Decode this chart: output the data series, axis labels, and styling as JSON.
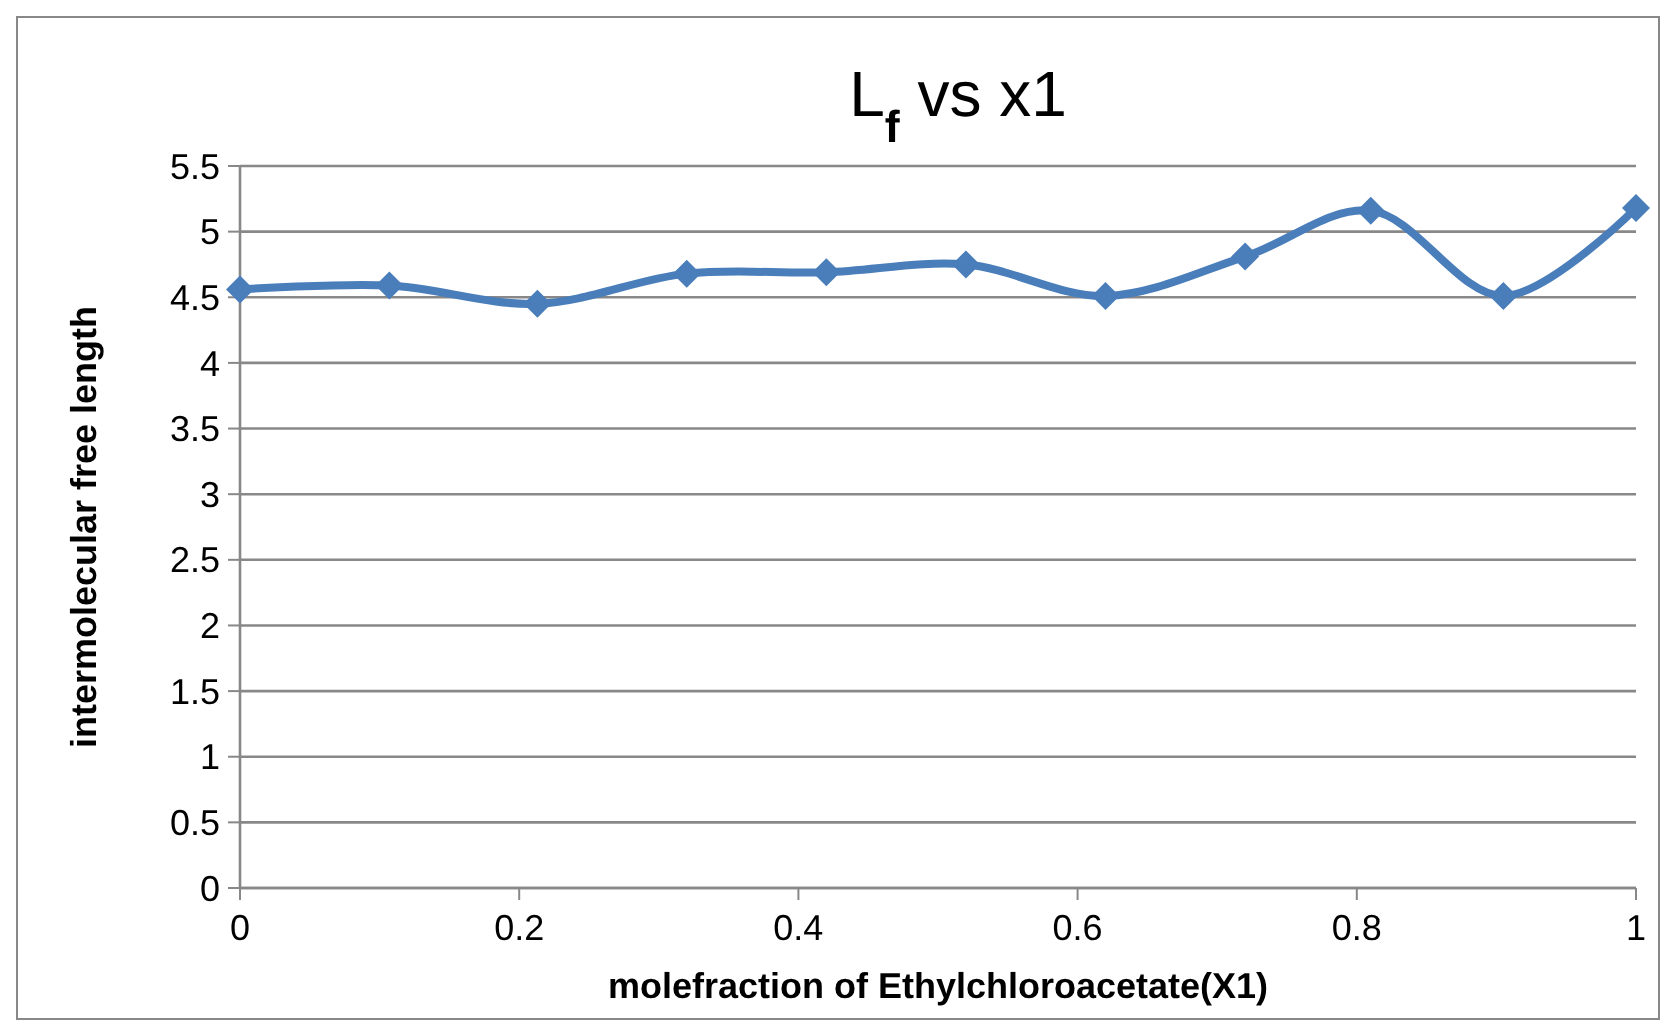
{
  "chart_data": {
    "type": "line",
    "title": "L$_{f}$ vs x1",
    "xlabel": "molefraction of Ethylchloroacetate(X1)",
    "ylabel": "intermolecular free length",
    "x": [
      0,
      0.107,
      0.213,
      0.32,
      0.42,
      0.52,
      0.62,
      0.72,
      0.81,
      0.905,
      1
    ],
    "series": [
      {
        "color": "#4a7ebb",
        "values": [
          4.56,
          4.59,
          4.45,
          4.68,
          4.69,
          4.75,
          4.51,
          4.81,
          5.16,
          4.51,
          5.18
        ]
      }
    ],
    "xlim": [
      0,
      1
    ],
    "xticks": [
      0,
      0.2,
      0.4,
      0.6,
      0.8,
      1
    ],
    "ylim": [
      0,
      5.5
    ],
    "yticks": [
      0,
      0.5,
      1,
      1.5,
      2,
      2.5,
      3,
      3.5,
      4,
      4.5,
      5,
      5.5
    ],
    "grid": "y",
    "marker": "diamond",
    "line_style": "solid"
  }
}
